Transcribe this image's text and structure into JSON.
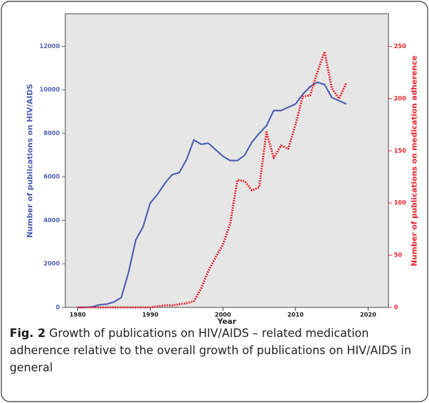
{
  "chart_data": {
    "type": "line",
    "xlabel": "Year",
    "ylabel": "Number of publications on HIV/AIDS",
    "y2label": "Number of publications on medication adherence",
    "x": [
      1980,
      1981,
      1982,
      1983,
      1984,
      1985,
      1986,
      1987,
      1988,
      1989,
      1990,
      1991,
      1992,
      1993,
      1994,
      1995,
      1996,
      1997,
      1998,
      1999,
      2000,
      2001,
      2002,
      2003,
      2004,
      2005,
      2006,
      2007,
      2008,
      2009,
      2010,
      2011,
      2012,
      2013,
      2014,
      2015,
      2016,
      2017
    ],
    "series": [
      {
        "name": "Number of publications on HIV/AIDS",
        "color": "#4a5fb0",
        "style": "solid",
        "values": [
          0,
          0,
          30,
          120,
          150,
          250,
          450,
          1600,
          3100,
          3700,
          4800,
          5200,
          5700,
          6100,
          6200,
          6800,
          7700,
          7500,
          7550,
          7250,
          6950,
          6750,
          6750,
          7000,
          7600,
          8000,
          8350,
          9050,
          9050,
          9200,
          9350,
          9800,
          10150,
          10350,
          10250,
          9650,
          9500,
          9350
        ]
      },
      {
        "name": "Number of publications on medication adherence",
        "color": "#e8242c",
        "style": "dotted",
        "axis": "y2",
        "values": [
          0,
          0,
          0,
          0,
          0,
          0,
          0,
          0,
          0,
          0,
          0,
          1,
          2,
          2,
          3,
          4,
          6,
          18,
          35,
          48,
          60,
          80,
          122,
          121,
          112,
          115,
          168,
          143,
          155,
          152,
          175,
          202,
          203,
          225,
          245,
          210,
          200,
          215
        ]
      }
    ],
    "xlim": [
      1978.3,
      2022.8
    ],
    "xticks": [
      1980,
      1990,
      2000,
      2010,
      2020
    ],
    "ylim": [
      0,
      13500
    ],
    "yticks": [
      0,
      2000,
      4000,
      6000,
      8000,
      10000,
      12000
    ],
    "y2lim": [
      0,
      281.25
    ],
    "y2ticks": [
      0,
      50,
      100,
      150,
      200,
      250
    ],
    "grid": false
  },
  "caption": {
    "label": "Fig. 2",
    "text": "Growth of publications on HIV/AIDS – related medication adherence relative to the overall growth of publications on HIV/AIDS in general"
  }
}
